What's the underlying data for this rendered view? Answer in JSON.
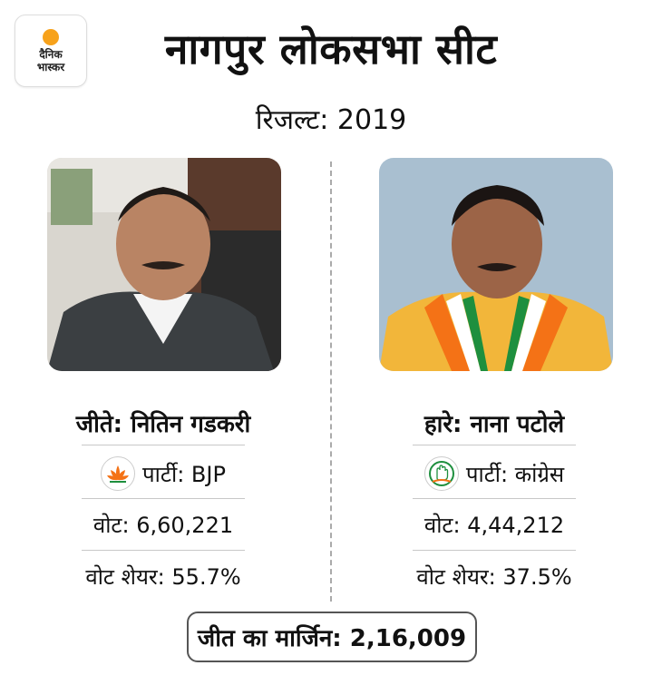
{
  "logo": {
    "line1": "दैनिक",
    "line2": "भास्कर",
    "accent": "#f7a21b"
  },
  "title": "नागपुर लोकसभा सीट",
  "subtitle": "रिजल्ट: 2019",
  "winner": {
    "label": "जीते: नितिन गडकरी",
    "party_label": "पार्टी: BJP",
    "party_icon": "lotus-icon",
    "votes_label": "वोट: 6,60,221",
    "vote_share_label": "वोट शेयर: 55.7%",
    "vote_share": 55.7
  },
  "loser": {
    "label": "हारे: नाना पटोले",
    "party_label": "पार्टी: कांग्रेस",
    "party_icon": "hand-icon",
    "votes_label": "वोट: 4,44,212",
    "vote_share_label": "वोट शेयर: 37.5%",
    "vote_share": 37.5
  },
  "margin_label": "जीत का मार्जिन: 2,16,009",
  "colors": {
    "bjp_saffron": "#f47216",
    "congress_green": "#1e8f3e",
    "box_border": "#555555"
  }
}
